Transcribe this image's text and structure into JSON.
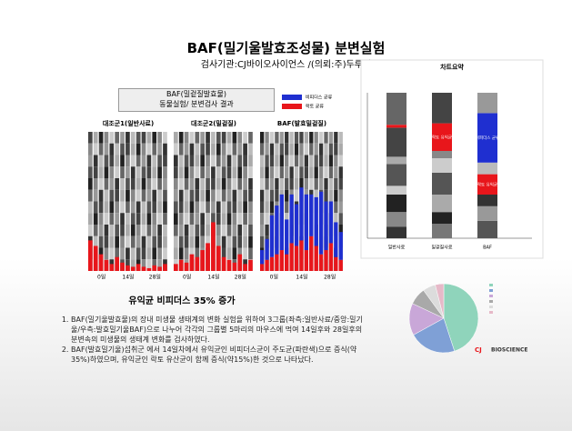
{
  "header": {
    "title": "BAF(밀기울발효조성물) 분변실험",
    "subtitle": "검사기관:CJ바이오사이언스 /(의뢰:주)두루원"
  },
  "panel": {
    "box_title": "BAF(밀겉질발효물)",
    "box_subtitle": "동물실험/ 분변검사 결과",
    "legend": [
      {
        "name": "비피더스 균류",
        "color": "#1f2fd0"
      },
      {
        "name": "락토 균류",
        "color": "#e8161b"
      }
    ],
    "x_labels": [
      "0일",
      "14일",
      "28일"
    ],
    "groups": [
      {
        "title": "대조군1(일반사료)",
        "red": [
          22,
          18,
          12,
          8,
          5,
          10,
          6,
          4,
          3,
          5,
          3,
          2,
          4,
          3,
          5
        ],
        "blue": [
          0,
          0,
          0,
          0,
          0,
          0,
          0,
          0,
          0,
          0,
          0,
          0,
          0,
          0,
          0
        ]
      },
      {
        "title": "대조군2(밀겉질)",
        "red": [
          5,
          8,
          6,
          12,
          10,
          15,
          20,
          35,
          18,
          10,
          8,
          6,
          12,
          5,
          8
        ],
        "blue": [
          0,
          0,
          0,
          0,
          0,
          0,
          0,
          0,
          0,
          0,
          0,
          0,
          0,
          0,
          0
        ]
      },
      {
        "title": "BAF(발효밀겉질)",
        "red": [
          5,
          8,
          10,
          12,
          15,
          12,
          20,
          18,
          22,
          15,
          25,
          18,
          12,
          15,
          20,
          10,
          8
        ],
        "blue": [
          10,
          15,
          30,
          35,
          40,
          25,
          35,
          30,
          38,
          40,
          30,
          35,
          45,
          35,
          30,
          25,
          20
        ]
      }
    ]
  },
  "summary": {
    "title": "차트요약",
    "bars": [
      {
        "label": "일반사료",
        "segments": [
          {
            "value": 8,
            "color": "#333"
          },
          {
            "value": 10,
            "color": "#888"
          },
          {
            "value": 12,
            "color": "#222"
          },
          {
            "value": 6,
            "color": "#ccc"
          },
          {
            "value": 15,
            "color": "#555"
          },
          {
            "value": 5,
            "color": "#aaa"
          },
          {
            "value": 20,
            "color": "#444"
          },
          {
            "value": 2,
            "color": "#e8161b"
          },
          {
            "value": 22,
            "color": "#666"
          }
        ]
      },
      {
        "label": "밀겉질사료",
        "segments": [
          {
            "value": 10,
            "color": "#777"
          },
          {
            "value": 8,
            "color": "#222"
          },
          {
            "value": 12,
            "color": "#aaa"
          },
          {
            "value": 15,
            "color": "#555"
          },
          {
            "value": 10,
            "color": "#ccc"
          },
          {
            "value": 5,
            "color": "#888"
          },
          {
            "value": 19,
            "color": "#e8161b",
            "label": "락토 유익균"
          },
          {
            "value": 21,
            "color": "#444"
          }
        ]
      },
      {
        "label": "BAF",
        "segments": [
          {
            "value": 12,
            "color": "#555"
          },
          {
            "value": 10,
            "color": "#999"
          },
          {
            "value": 8,
            "color": "#333"
          },
          {
            "value": 14,
            "color": "#e8161b",
            "label": "락토 유익균"
          },
          {
            "value": 8,
            "color": "#bbb"
          },
          {
            "value": 34,
            "color": "#1f2fd0",
            "label": "비피더스 균류"
          },
          {
            "value": 14,
            "color": "#999"
          }
        ]
      }
    ]
  },
  "pie": {
    "values": [
      45,
      22,
      15,
      8,
      6,
      4
    ],
    "colors": [
      "#8fd4bb",
      "#7fa0d6",
      "#c9a7d8",
      "#a9a9a9",
      "#dcdcdc",
      "#e6b9c8"
    ]
  },
  "logo": "BIOSCIENCE",
  "body": {
    "heading": "유익균 비피더스 35% 증가",
    "items": [
      "BAF(밀기울발효물)의 장내 미생물 생태계의 변화 실험을 위하여 3그룹(좌측:일반사료/중앙:밀기울/우측:발효밀기울BAF)으로 나누어 각각의 그룹별 5마리의 마우스에 먹여 14일후와 28일후의 분변속의 미생물의 생태계 변화를 검사하였다.",
      "BAF(발효밀기울)섭취군 에서 14일차에서 유익균인 비피더스균이 주도균(파란색)으로 증식(약35%)하였으며, 유익균인 락토 유산균이 함께 증식(약15%)한 것으로 나타났다."
    ]
  }
}
